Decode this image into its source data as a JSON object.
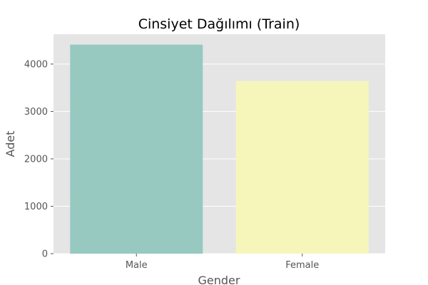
{
  "chart_data": {
    "type": "bar",
    "title": "Cinsiyet Dağılımı (Train)",
    "xlabel": "Gender",
    "ylabel": "Adet",
    "categories": [
      "Male",
      "Female"
    ],
    "values": [
      4410,
      3640
    ],
    "ylim": [
      0,
      4630
    ],
    "yticks": [
      0,
      1000,
      2000,
      3000,
      4000
    ],
    "grid": true,
    "colors": [
      "#97c9c1",
      "#f6f6bb"
    ],
    "background": "#e5e5e5",
    "gridColor": "#ffffff"
  }
}
